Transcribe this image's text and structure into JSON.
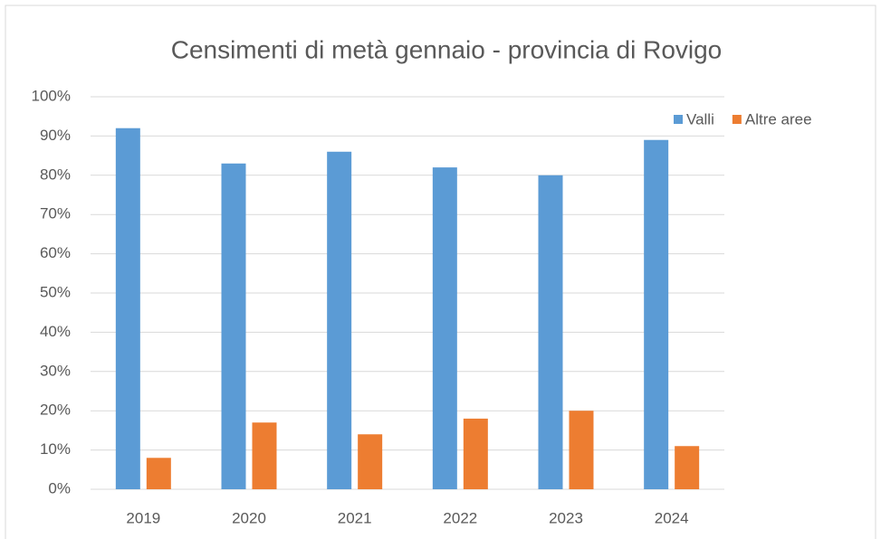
{
  "chart_data": {
    "type": "bar",
    "title": "Censimenti di metà gennaio - provincia di Rovigo",
    "categories": [
      "2019",
      "2020",
      "2021",
      "2022",
      "2023",
      "2024"
    ],
    "series": [
      {
        "name": "Valli",
        "color": "#5b9bd5",
        "values": [
          92,
          83,
          86,
          82,
          80,
          89
        ]
      },
      {
        "name": "Altre aree",
        "color": "#ed7d31",
        "values": [
          8,
          17,
          14,
          18,
          20,
          11
        ]
      }
    ],
    "ylim": [
      0,
      100
    ],
    "yticks": [
      {
        "value": 0,
        "label": "0%"
      },
      {
        "value": 10,
        "label": "10%"
      },
      {
        "value": 20,
        "label": "20%"
      },
      {
        "value": 30,
        "label": "30%"
      },
      {
        "value": 40,
        "label": "40%"
      },
      {
        "value": 50,
        "label": "50%"
      },
      {
        "value": 60,
        "label": "60%"
      },
      {
        "value": 70,
        "label": "70%"
      },
      {
        "value": 80,
        "label": "80%"
      },
      {
        "value": 90,
        "label": "90%"
      },
      {
        "value": 100,
        "label": "100%"
      }
    ],
    "grid": true,
    "legend": "top-right"
  }
}
